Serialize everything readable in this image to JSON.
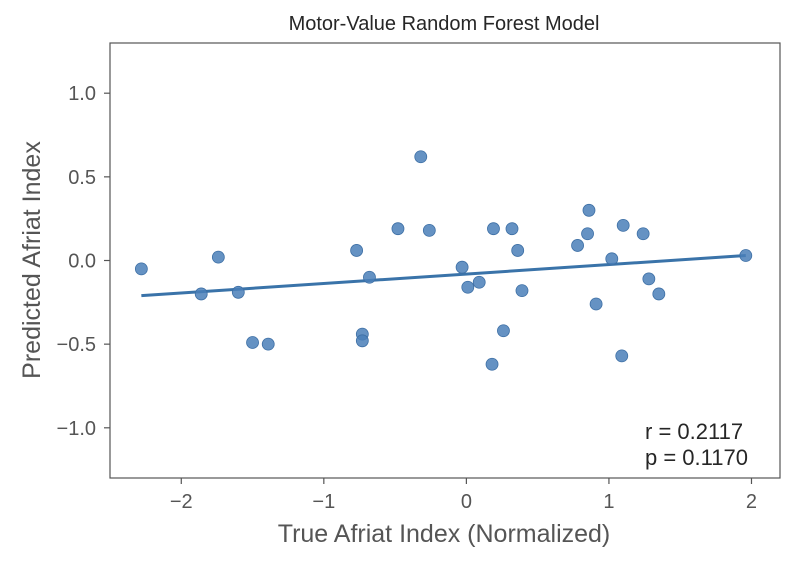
{
  "chart_data": {
    "type": "scatter",
    "title": "Motor-Value Random Forest Model",
    "xlabel": "True Afriat Index (Normalized)",
    "ylabel": "Predicted Afriat Index",
    "xlim": [
      -2.5,
      2.2
    ],
    "ylim": [
      -1.3,
      1.3
    ],
    "xticks": [
      -2,
      -1,
      0,
      1,
      2
    ],
    "xtick_labels": [
      "−2",
      "−1",
      "0",
      "1",
      "2"
    ],
    "yticks": [
      1.0,
      0.5,
      0.0,
      -0.5,
      -1.0
    ],
    "ytick_labels": [
      "1.0",
      "0.5",
      "0.0",
      "−0.5",
      "−1.0"
    ],
    "grid": false,
    "points": [
      {
        "x": -2.28,
        "y": -0.05
      },
      {
        "x": -1.86,
        "y": -0.2
      },
      {
        "x": -1.74,
        "y": 0.02
      },
      {
        "x": -1.6,
        "y": -0.19
      },
      {
        "x": -1.5,
        "y": -0.49
      },
      {
        "x": -1.39,
        "y": -0.5
      },
      {
        "x": -0.77,
        "y": 0.06
      },
      {
        "x": -0.73,
        "y": -0.44
      },
      {
        "x": -0.73,
        "y": -0.48
      },
      {
        "x": -0.68,
        "y": -0.1
      },
      {
        "x": -0.48,
        "y": 0.19
      },
      {
        "x": -0.32,
        "y": 0.62
      },
      {
        "x": -0.26,
        "y": 0.18
      },
      {
        "x": -0.03,
        "y": -0.04
      },
      {
        "x": 0.01,
        "y": -0.16
      },
      {
        "x": 0.09,
        "y": -0.13
      },
      {
        "x": 0.18,
        "y": -0.62
      },
      {
        "x": 0.19,
        "y": 0.19
      },
      {
        "x": 0.26,
        "y": -0.42
      },
      {
        "x": 0.32,
        "y": 0.19
      },
      {
        "x": 0.36,
        "y": 0.06
      },
      {
        "x": 0.39,
        "y": -0.18
      },
      {
        "x": 0.78,
        "y": 0.09
      },
      {
        "x": 0.85,
        "y": 0.16
      },
      {
        "x": 0.86,
        "y": 0.3
      },
      {
        "x": 0.91,
        "y": -0.26
      },
      {
        "x": 1.02,
        "y": 0.01
      },
      {
        "x": 1.09,
        "y": -0.57
      },
      {
        "x": 1.1,
        "y": 0.21
      },
      {
        "x": 1.24,
        "y": 0.16
      },
      {
        "x": 1.28,
        "y": -0.11
      },
      {
        "x": 1.35,
        "y": -0.2
      },
      {
        "x": 1.96,
        "y": 0.03
      }
    ],
    "regression_line": {
      "x": [
        -2.28,
        1.96
      ],
      "y": [
        -0.21,
        0.03
      ]
    },
    "annotations": [
      "r = 0.2117",
      "p = 0.1170"
    ],
    "colors": {
      "point": "#4a7fb8",
      "line": "#3a73a9",
      "axes": "#555555"
    }
  }
}
